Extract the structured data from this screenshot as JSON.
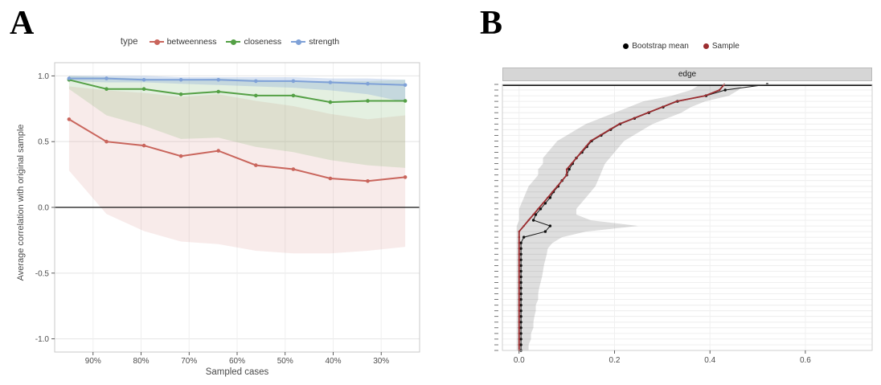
{
  "panelA": {
    "label": "A"
  },
  "panelB": {
    "label": "B"
  },
  "chart_data": [
    {
      "type": "line",
      "panel": "A",
      "legend_title": "type",
      "xlabel": "Sampled cases",
      "ylabel": "Average correlation with original sample",
      "ylim": [
        -1.1,
        1.1
      ],
      "yticks": [
        1.0,
        0.5,
        0.0,
        -0.5,
        -1.0
      ],
      "hline": 0,
      "xticks": [
        "90%",
        "80%",
        "70%",
        "60%",
        "50%",
        "40%",
        "30%"
      ],
      "xtick_percent": [
        90,
        80,
        70,
        60,
        50,
        40,
        30
      ],
      "x_percent": [
        95,
        87.2,
        79.4,
        71.7,
        63.9,
        56.1,
        48.3,
        40.6,
        32.8,
        25
      ],
      "series": [
        {
          "name": "betweenness",
          "color": "#C9655C",
          "fill": "rgba(201,101,92,0.13)",
          "values": [
            0.67,
            0.5,
            0.47,
            0.39,
            0.43,
            0.32,
            0.29,
            0.22,
            0.2,
            0.23
          ],
          "lower": [
            0.28,
            -0.05,
            -0.18,
            -0.26,
            -0.28,
            -0.33,
            -0.35,
            -0.35,
            -0.33,
            -0.3
          ],
          "upper": [
            0.92,
            0.89,
            0.87,
            0.84,
            0.86,
            0.81,
            0.77,
            0.71,
            0.67,
            0.7
          ]
        },
        {
          "name": "closeness",
          "color": "#54A045",
          "fill": "rgba(84,160,69,0.16)",
          "values": [
            0.97,
            0.9,
            0.9,
            0.86,
            0.88,
            0.85,
            0.85,
            0.8,
            0.81,
            0.81
          ],
          "lower": [
            0.9,
            0.7,
            0.62,
            0.52,
            0.53,
            0.46,
            0.42,
            0.36,
            0.32,
            0.3
          ],
          "upper": [
            1.0,
            0.99,
            0.98,
            0.97,
            0.98,
            0.97,
            0.96,
            0.96,
            0.96,
            0.97
          ]
        },
        {
          "name": "strength",
          "color": "#7FA1D7",
          "fill": "rgba(127,161,215,0.30)",
          "values": [
            0.98,
            0.98,
            0.97,
            0.97,
            0.97,
            0.96,
            0.96,
            0.95,
            0.94,
            0.93
          ],
          "lower": [
            0.96,
            0.95,
            0.95,
            0.94,
            0.93,
            0.92,
            0.91,
            0.89,
            0.86,
            0.8
          ],
          "upper": [
            1.0,
            1.0,
            1.0,
            0.99,
            0.99,
            0.99,
            0.99,
            0.98,
            0.98,
            0.97
          ]
        }
      ]
    },
    {
      "type": "line",
      "panel": "B",
      "facet_label": "edge",
      "legend": [
        "Bootstrap mean",
        "Sample"
      ],
      "colors": {
        "bootstrap": "#000000",
        "sample": "#9B2D30",
        "ci_fill": "rgba(0,0,0,0.13)"
      },
      "xticks": [
        0.0,
        0.2,
        0.4,
        0.6
      ],
      "xlim": [
        -0.035,
        0.74
      ],
      "edges_bottom_to_top": {
        "sample": [
          0,
          0,
          0,
          0,
          0,
          0,
          0,
          0,
          0,
          0,
          0,
          0,
          0,
          0,
          0,
          0,
          0,
          0,
          0,
          0,
          0,
          0,
          0.01,
          0.02,
          0.03,
          0.04,
          0.05,
          0.06,
          0.07,
          0.08,
          0.09,
          0.1,
          0.1,
          0.11,
          0.12,
          0.13,
          0.14,
          0.15,
          0.17,
          0.19,
          0.21,
          0.24,
          0.27,
          0.3,
          0.33,
          0.39,
          0.42,
          0.43
        ],
        "bootstrap_mean": [
          0.004,
          0.004,
          0.004,
          0.004,
          0.004,
          0.004,
          0.004,
          0.004,
          0.004,
          0.004,
          0.004,
          0.004,
          0.004,
          0.004,
          0.004,
          0.004,
          0.004,
          0.004,
          0.004,
          0.004,
          0.01,
          0.055,
          0.065,
          0.03,
          0.035,
          0.045,
          0.055,
          0.065,
          0.072,
          0.082,
          0.09,
          0.1,
          0.105,
          0.112,
          0.12,
          0.132,
          0.142,
          0.152,
          0.172,
          0.192,
          0.212,
          0.242,
          0.272,
          0.302,
          0.332,
          0.392,
          0.432,
          0.52
        ],
        "ci_lower": [
          -0.005,
          -0.005,
          -0.005,
          -0.005,
          -0.005,
          -0.005,
          -0.005,
          -0.005,
          -0.005,
          -0.005,
          -0.005,
          -0.005,
          -0.005,
          -0.005,
          -0.005,
          -0.005,
          -0.005,
          -0.005,
          -0.005,
          -0.005,
          -0.005,
          -0.005,
          -0.005,
          0,
          0,
          0,
          0.005,
          0.01,
          0.015,
          0.02,
          0.03,
          0.04,
          0.04,
          0.05,
          0.05,
          0.06,
          0.07,
          0.08,
          0.1,
          0.12,
          0.14,
          0.17,
          0.2,
          0.23,
          0.26,
          0.32,
          0.36,
          0.38
        ],
        "ci_upper": [
          0.02,
          0.02,
          0.025,
          0.025,
          0.03,
          0.03,
          0.032,
          0.035,
          0.035,
          0.04,
          0.04,
          0.042,
          0.045,
          0.048,
          0.05,
          0.052,
          0.055,
          0.058,
          0.06,
          0.07,
          0.09,
          0.14,
          0.25,
          0.15,
          0.12,
          0.12,
          0.13,
          0.14,
          0.15,
          0.16,
          0.165,
          0.17,
          0.175,
          0.18,
          0.19,
          0.2,
          0.21,
          0.22,
          0.24,
          0.26,
          0.28,
          0.31,
          0.34,
          0.36,
          0.39,
          0.44,
          0.46,
          0.47
        ]
      }
    }
  ]
}
